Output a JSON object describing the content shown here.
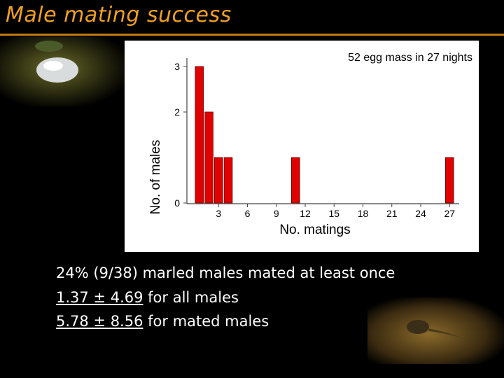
{
  "slide": {
    "title": "Male mating success",
    "lines": [
      {
        "text": "24% (9/38) marled males mated at least once"
      },
      {
        "underlined": "1.37 ± 4.69",
        "rest": " for all males"
      },
      {
        "underlined": "5.78 ± 8.56",
        "rest": " for mated males"
      }
    ]
  },
  "chart_data": {
    "type": "bar",
    "title": "52 egg mass in 27 nights",
    "xlabel": "No. matings",
    "ylabel": "No. of males",
    "x_ticks": [
      3,
      6,
      9,
      12,
      15,
      18,
      21,
      24,
      27
    ],
    "y_ticks": [
      0,
      2,
      3
    ],
    "xlim": [
      0,
      28
    ],
    "ylim": [
      0,
      3
    ],
    "bar_color": "#e00000",
    "bars": [
      {
        "x": 1,
        "y": 3
      },
      {
        "x": 2,
        "y": 2
      },
      {
        "x": 3,
        "y": 1
      },
      {
        "x": 4,
        "y": 1
      },
      {
        "x": 11,
        "y": 1
      },
      {
        "x": 27,
        "y": 1
      }
    ]
  }
}
